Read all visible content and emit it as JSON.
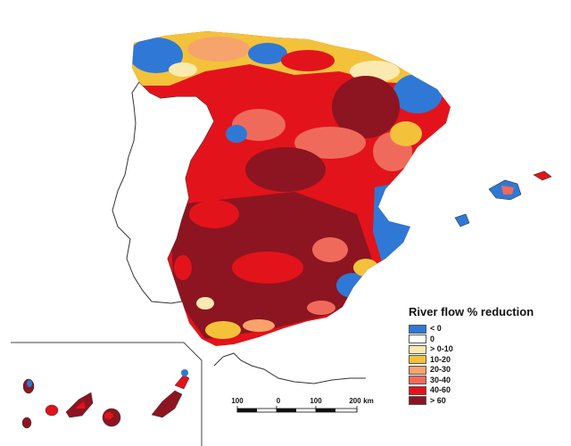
{
  "legend": {
    "title": "River flow % reduction",
    "items": [
      {
        "label": "< 0",
        "color": "#2f78d6"
      },
      {
        "label": "0",
        "color": "#ffffff"
      },
      {
        "label": "> 0-10",
        "color": "#fbeab0"
      },
      {
        "label": "10-20",
        "color": "#f3c23a"
      },
      {
        "label": "20-30",
        "color": "#f7a36c"
      },
      {
        "label": "30-40",
        "color": "#f06a5c"
      },
      {
        "label": "40-60",
        "color": "#e3131b"
      },
      {
        "label": "> 60",
        "color": "#8c1521"
      }
    ]
  },
  "scale": {
    "ticks": [
      "100",
      "0",
      "100",
      "200"
    ],
    "unit": "km"
  }
}
